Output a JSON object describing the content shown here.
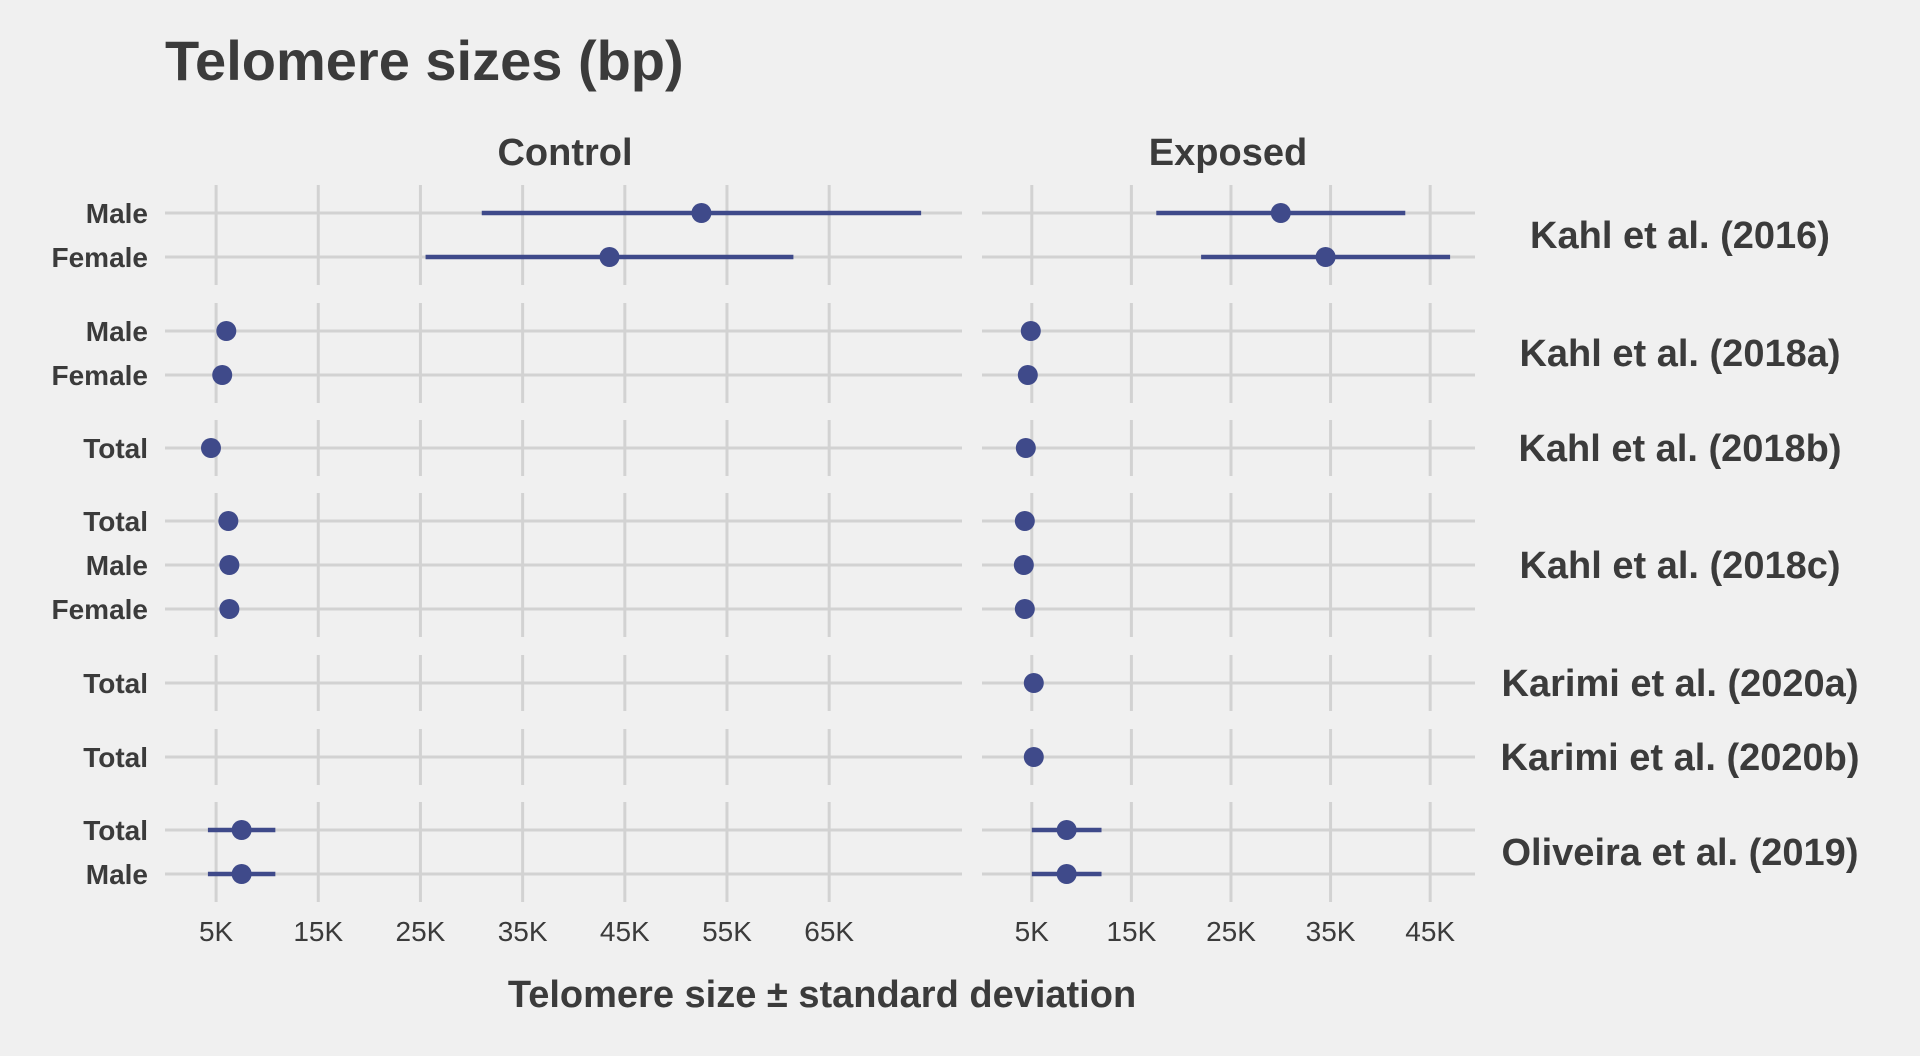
{
  "chart_data": {
    "type": "scatter",
    "title": "Telomere sizes (bp)",
    "xlabel": "Telomere size ± standard deviation",
    "point_color": "#3f4a8a",
    "panels": [
      {
        "name": "Control",
        "xlim": [
          0,
          78000
        ],
        "ticks": [
          {
            "value": 5000,
            "label": "5K"
          },
          {
            "value": 15000,
            "label": "15K"
          },
          {
            "value": 25000,
            "label": "25K"
          },
          {
            "value": 35000,
            "label": "35K"
          },
          {
            "value": 45000,
            "label": "45K"
          },
          {
            "value": 55000,
            "label": "55K"
          },
          {
            "value": 65000,
            "label": "65K"
          }
        ]
      },
      {
        "name": "Exposed",
        "xlim": [
          0,
          49500
        ],
        "ticks": [
          {
            "value": 5000,
            "label": "5K"
          },
          {
            "value": 15000,
            "label": "15K"
          },
          {
            "value": 25000,
            "label": "25K"
          },
          {
            "value": 35000,
            "label": "35K"
          },
          {
            "value": 45000,
            "label": "45K"
          }
        ]
      }
    ],
    "groups": [
      {
        "study": "Kahl et al. (2016)",
        "rows": [
          {
            "label": "Male",
            "control": {
              "mean": 52500,
              "sd": 21500
            },
            "exposed": {
              "mean": 30000,
              "sd": 12500
            }
          },
          {
            "label": "Female",
            "control": {
              "mean": 43500,
              "sd": 18000
            },
            "exposed": {
              "mean": 34500,
              "sd": 12500
            }
          }
        ]
      },
      {
        "study": "Kahl et al. (2018a)",
        "rows": [
          {
            "label": "Male",
            "control": {
              "mean": 6000,
              "sd": 0
            },
            "exposed": {
              "mean": 4900,
              "sd": 0
            }
          },
          {
            "label": "Female",
            "control": {
              "mean": 5600,
              "sd": 0
            },
            "exposed": {
              "mean": 4600,
              "sd": 0
            }
          }
        ]
      },
      {
        "study": "Kahl et al. (2018b)",
        "rows": [
          {
            "label": "Total",
            "control": {
              "mean": 4500,
              "sd": 0
            },
            "exposed": {
              "mean": 4400,
              "sd": 0
            }
          }
        ]
      },
      {
        "study": "Kahl et al. (2018c)",
        "rows": [
          {
            "label": "Total",
            "control": {
              "mean": 6200,
              "sd": 0
            },
            "exposed": {
              "mean": 4300,
              "sd": 0
            }
          },
          {
            "label": "Male",
            "control": {
              "mean": 6300,
              "sd": 0
            },
            "exposed": {
              "mean": 4200,
              "sd": 0
            }
          },
          {
            "label": "Female",
            "control": {
              "mean": 6300,
              "sd": 0
            },
            "exposed": {
              "mean": 4300,
              "sd": 0
            }
          }
        ]
      },
      {
        "study": "Karimi et al. (2020a)",
        "rows": [
          {
            "label": "Total",
            "control": null,
            "exposed": {
              "mean": 5200,
              "sd": 0
            }
          }
        ]
      },
      {
        "study": "Karimi et al. (2020b)",
        "rows": [
          {
            "label": "Total",
            "control": null,
            "exposed": {
              "mean": 5200,
              "sd": 0
            }
          }
        ]
      },
      {
        "study": "Oliveira et al. (2019)",
        "rows": [
          {
            "label": "Total",
            "control": {
              "mean": 7500,
              "sd": 3300
            },
            "exposed": {
              "mean": 8500,
              "sd": 3500
            }
          },
          {
            "label": "Male",
            "control": {
              "mean": 7500,
              "sd": 3300
            },
            "exposed": {
              "mean": 8500,
              "sd": 3500
            }
          }
        ]
      }
    ]
  }
}
